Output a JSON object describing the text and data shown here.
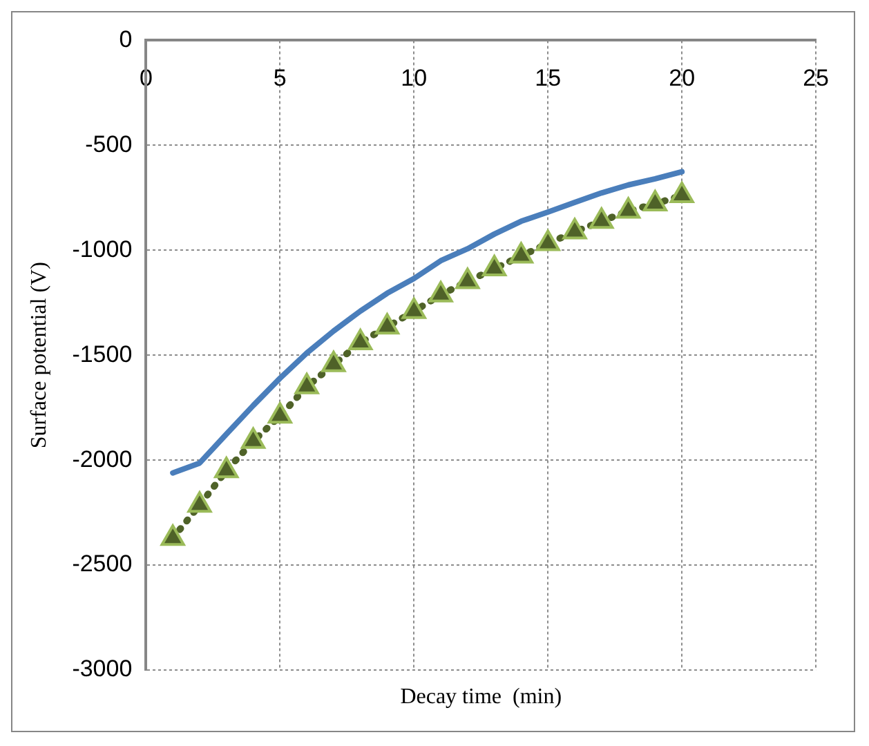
{
  "chart_data": {
    "type": "line",
    "xlabel": "Decay time  (min)",
    "ylabel": "Surface potential (V)",
    "xlim": [
      0,
      25
    ],
    "xticks": [
      0,
      5,
      10,
      15,
      20,
      25
    ],
    "ylim": [
      -3000,
      0
    ],
    "yticks": [
      -3000,
      -2500,
      -2000,
      -1500,
      -1000,
      -500,
      0
    ],
    "grid": true,
    "legend": false,
    "series": [
      {
        "color": "#4a7ebb",
        "marker": "none",
        "line_style": "solid",
        "x": [
          1,
          2,
          3,
          4,
          5,
          6,
          7,
          8,
          9,
          10,
          11,
          12,
          13,
          14,
          15,
          16,
          17,
          18,
          19,
          20
        ],
        "values": [
          -2061,
          -2014,
          -1876,
          -1740,
          -1610,
          -1490,
          -1385,
          -1290,
          -1205,
          -1135,
          -1050,
          -993,
          -923,
          -862,
          -818,
          -772,
          -727,
          -689,
          -660,
          -626
        ]
      },
      {
        "color": "#4f6228",
        "marker": "triangle",
        "line_style": "dotted",
        "x": [
          1,
          2,
          3,
          4,
          5,
          6,
          7,
          8,
          9,
          10,
          11,
          12,
          13,
          14,
          15,
          16,
          17,
          18,
          19,
          20
        ],
        "values": [
          -2372,
          -2214,
          -2050,
          -1910,
          -1790,
          -1650,
          -1545,
          -1440,
          -1365,
          -1291,
          -1212,
          -1149,
          -1088,
          -1027,
          -968,
          -912,
          -862,
          -813,
          -779,
          -739
        ]
      }
    ]
  }
}
